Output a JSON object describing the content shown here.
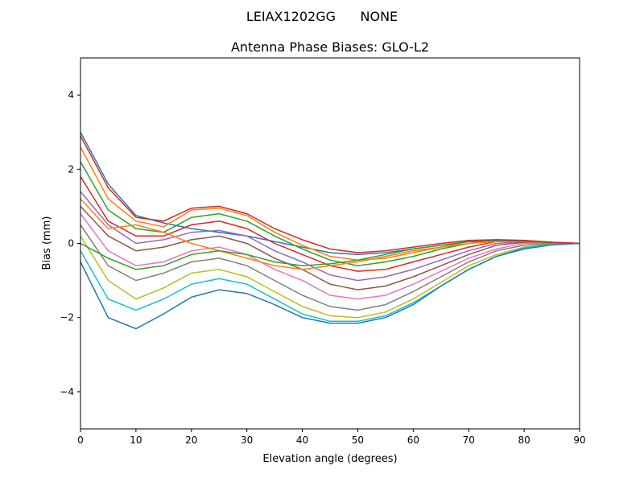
{
  "chart_data": {
    "type": "line",
    "suptitle": "LEIAX1202GG      NONE",
    "title": "Antenna Phase Biases: GLO-L2",
    "xlabel": "Elevation angle (degrees)",
    "ylabel": "Bias (mm)",
    "xlim": [
      0,
      90
    ],
    "ylim": [
      -5,
      5
    ],
    "xticks": [
      0,
      10,
      20,
      30,
      40,
      50,
      60,
      70,
      80,
      90
    ],
    "yticks": [
      -4,
      -2,
      0,
      2,
      4
    ],
    "ytick_labels": [
      "−4",
      "−2",
      "0",
      "2",
      "4"
    ],
    "grid": false,
    "legend": "none",
    "colors": [
      "#1f77b4",
      "#ff7f0e",
      "#2ca02c",
      "#d62728",
      "#9467bd",
      "#8c564b",
      "#e377c2",
      "#7f7f7f",
      "#bcbd22",
      "#17becf"
    ],
    "x": [
      0,
      5,
      10,
      15,
      20,
      25,
      30,
      35,
      40,
      45,
      50,
      55,
      60,
      65,
      70,
      75,
      80,
      85,
      90
    ],
    "series": [
      {
        "name": "line-1",
        "values": [
          3.0,
          1.6,
          0.75,
          0.55,
          0.4,
          0.3,
          0.2,
          0.05,
          -0.1,
          -0.25,
          -0.3,
          -0.25,
          -0.15,
          -0.05,
          0.05,
          0.05,
          0.05,
          0.02,
          0
        ]
      },
      {
        "name": "line-2",
        "values": [
          2.6,
          1.2,
          0.6,
          0.45,
          0.9,
          0.95,
          0.75,
          0.3,
          -0.05,
          -0.35,
          -0.45,
          -0.4,
          -0.25,
          -0.1,
          0.05,
          0.1,
          0.08,
          0.03,
          0
        ]
      },
      {
        "name": "line-3",
        "values": [
          2.2,
          0.9,
          0.4,
          0.3,
          0.7,
          0.8,
          0.6,
          0.2,
          -0.15,
          -0.45,
          -0.6,
          -0.5,
          -0.35,
          -0.15,
          0.0,
          0.08,
          0.07,
          0.03,
          0
        ]
      },
      {
        "name": "line-4",
        "values": [
          1.8,
          0.6,
          0.2,
          0.2,
          0.5,
          0.6,
          0.4,
          0.0,
          -0.3,
          -0.6,
          -0.75,
          -0.7,
          -0.5,
          -0.3,
          -0.1,
          0.05,
          0.06,
          0.03,
          0
        ]
      },
      {
        "name": "line-5",
        "values": [
          1.4,
          0.5,
          0.0,
          0.1,
          0.3,
          0.35,
          0.2,
          -0.2,
          -0.5,
          -0.85,
          -1.0,
          -0.9,
          -0.7,
          -0.45,
          -0.2,
          0.0,
          0.05,
          0.02,
          0
        ]
      },
      {
        "name": "line-6",
        "values": [
          1.0,
          0.2,
          -0.2,
          -0.1,
          0.1,
          0.2,
          0.0,
          -0.4,
          -0.7,
          -1.1,
          -1.25,
          -1.15,
          -0.9,
          -0.6,
          -0.3,
          -0.05,
          0.03,
          0.02,
          0
        ]
      },
      {
        "name": "line-7",
        "values": [
          0.8,
          -0.2,
          -0.6,
          -0.5,
          -0.2,
          -0.1,
          -0.3,
          -0.7,
          -1.0,
          -1.4,
          -1.5,
          -1.4,
          -1.1,
          -0.75,
          -0.4,
          -0.15,
          0.0,
          0.01,
          0
        ]
      },
      {
        "name": "line-8",
        "values": [
          0.5,
          -0.6,
          -1.0,
          -0.8,
          -0.5,
          -0.4,
          -0.6,
          -1.0,
          -1.4,
          -1.7,
          -1.8,
          -1.65,
          -1.3,
          -0.9,
          -0.5,
          -0.2,
          -0.05,
          0.0,
          0
        ]
      },
      {
        "name": "line-9",
        "values": [
          0.2,
          -1.0,
          -1.5,
          -1.2,
          -0.8,
          -0.7,
          -0.9,
          -1.3,
          -1.7,
          -1.95,
          -2.0,
          -1.85,
          -1.5,
          -1.05,
          -0.6,
          -0.3,
          -0.1,
          -0.02,
          0
        ]
      },
      {
        "name": "line-10",
        "values": [
          -0.2,
          -1.5,
          -1.8,
          -1.5,
          -1.1,
          -0.95,
          -1.1,
          -1.5,
          -1.9,
          -2.1,
          -2.1,
          -1.95,
          -1.6,
          -1.15,
          -0.7,
          -0.35,
          -0.12,
          -0.03,
          0
        ]
      },
      {
        "name": "line-11",
        "values": [
          -0.5,
          -2.0,
          -2.3,
          -1.9,
          -1.45,
          -1.25,
          -1.35,
          -1.65,
          -2.0,
          -2.15,
          -2.15,
          -2.0,
          -1.65,
          -1.15,
          -0.7,
          -0.35,
          -0.15,
          -0.04,
          0
        ]
      },
      {
        "name": "line-12",
        "values": [
          1.2,
          0.4,
          0.5,
          0.3,
          0.0,
          -0.2,
          -0.4,
          -0.6,
          -0.7,
          -0.6,
          -0.5,
          -0.35,
          -0.2,
          -0.1,
          0,
          0.05,
          0.05,
          0.02,
          0
        ]
      },
      {
        "name": "line-13",
        "values": [
          0.0,
          -0.4,
          -0.7,
          -0.6,
          -0.3,
          -0.2,
          -0.3,
          -0.5,
          -0.6,
          -0.55,
          -0.45,
          -0.3,
          -0.15,
          -0.05,
          0.05,
          0.08,
          0.06,
          0.02,
          0
        ]
      },
      {
        "name": "line-14",
        "values": [
          2.9,
          1.5,
          0.7,
          0.6,
          0.95,
          1.0,
          0.8,
          0.4,
          0.1,
          -0.15,
          -0.25,
          -0.2,
          -0.1,
          0.0,
          0.08,
          0.1,
          0.08,
          0.03,
          0
        ]
      }
    ]
  }
}
